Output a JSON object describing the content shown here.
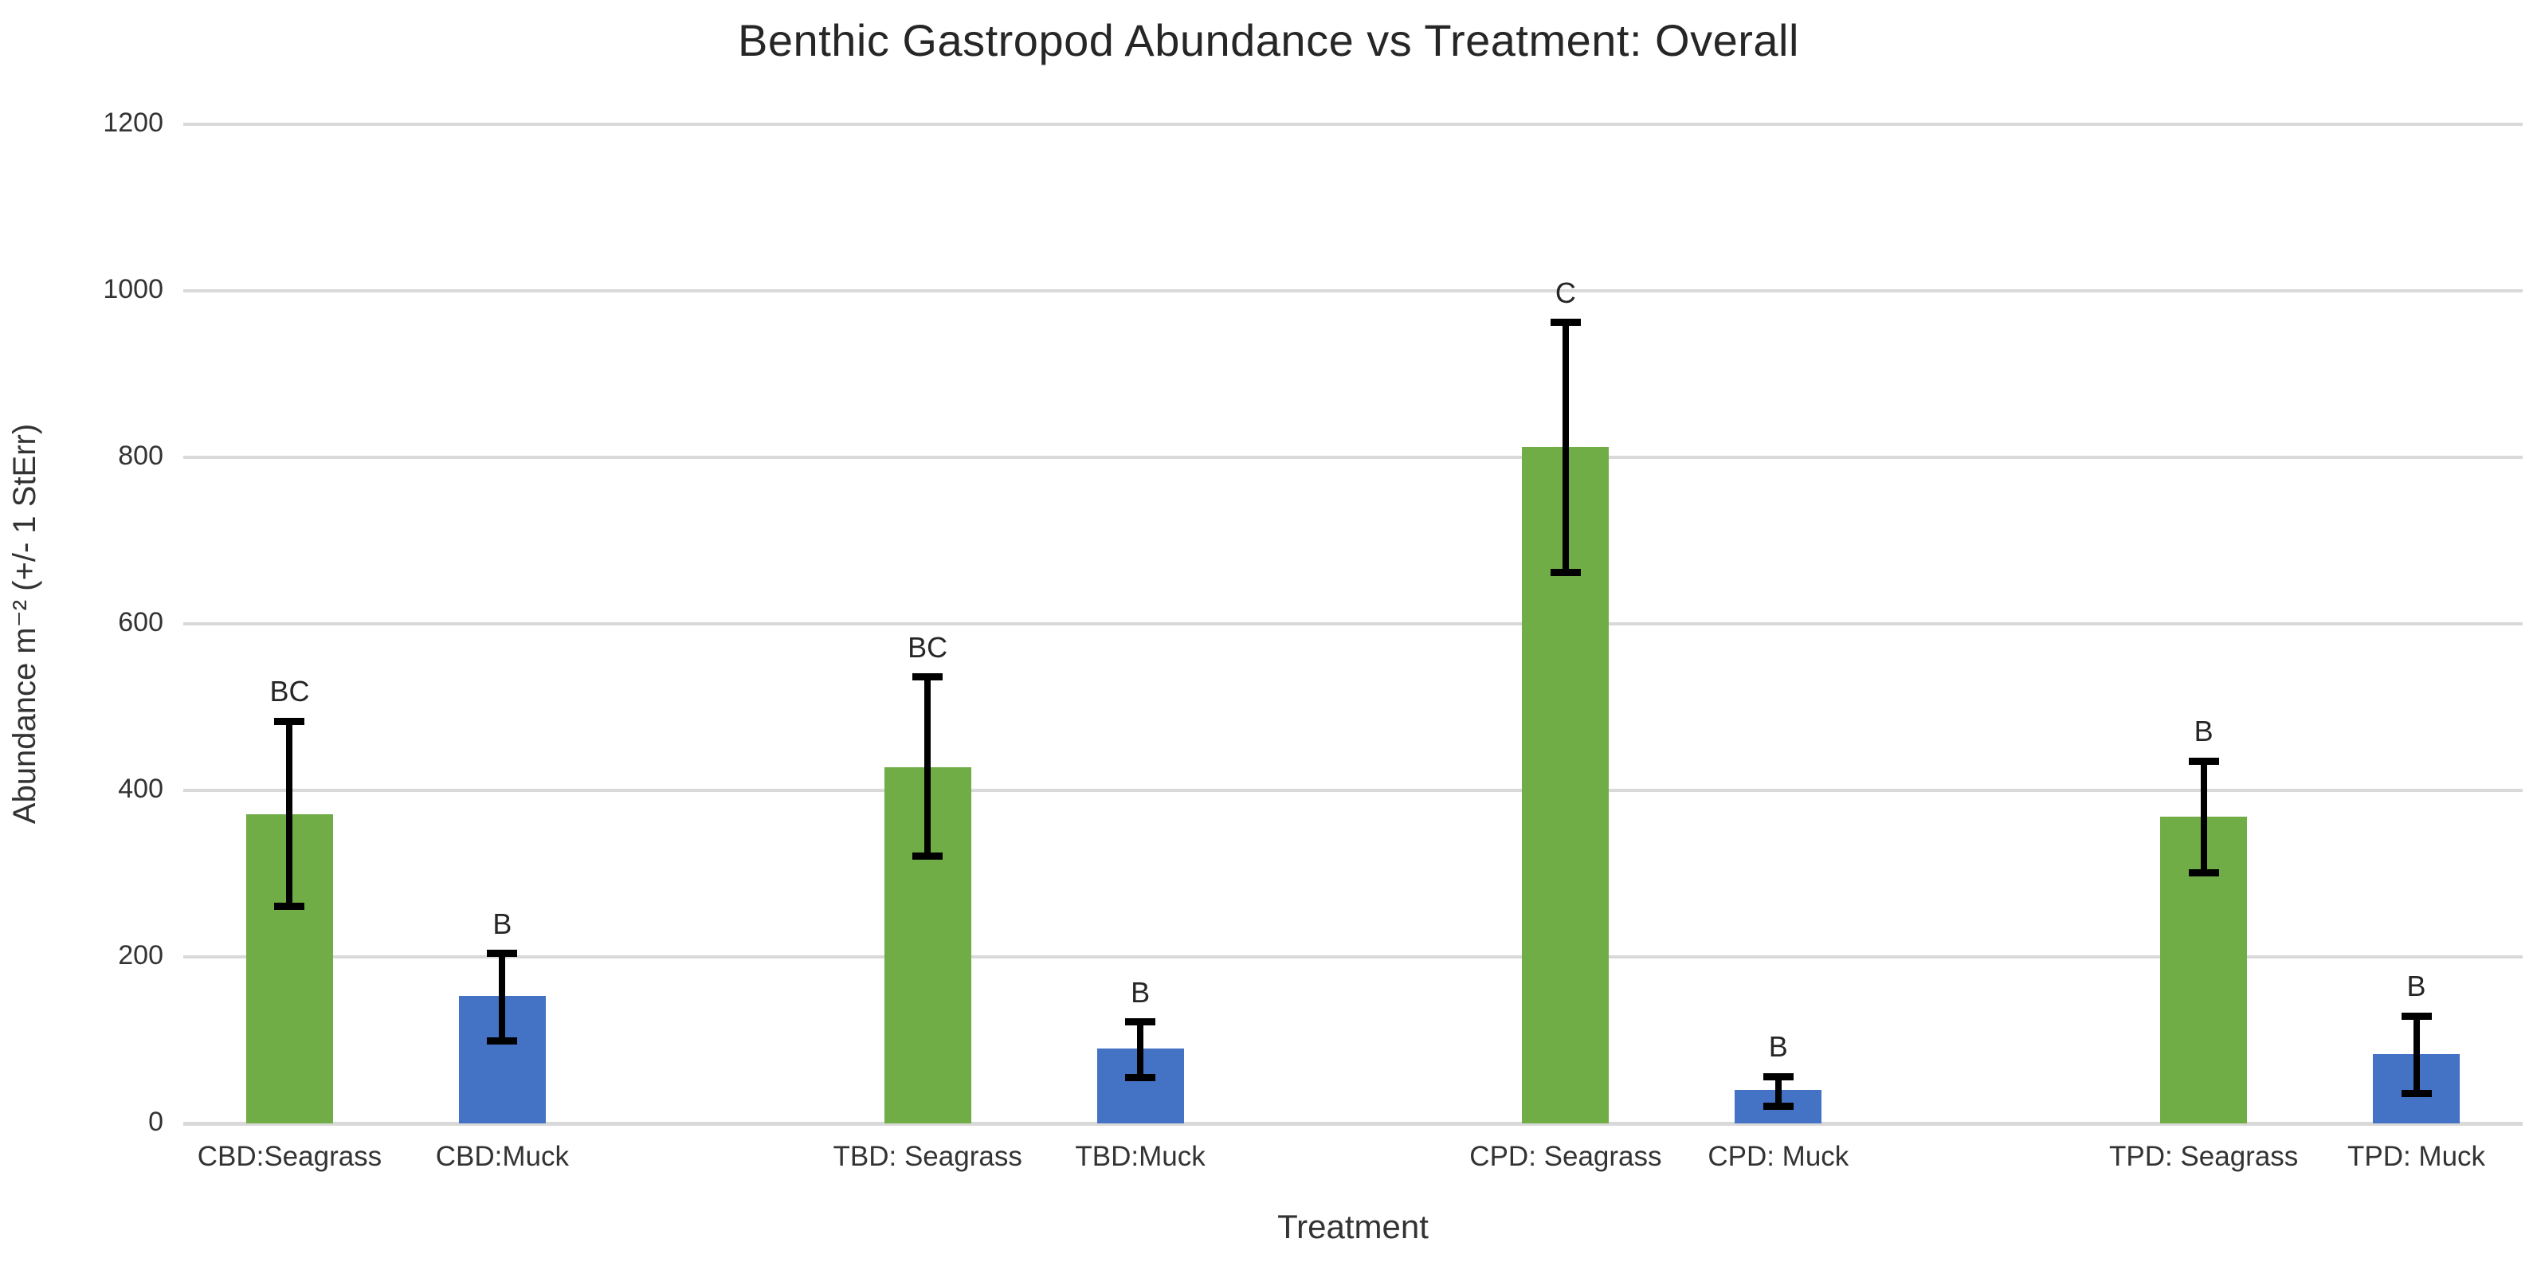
{
  "figure": {
    "background": "#ffffff"
  },
  "chart_data": {
    "type": "bar",
    "title": "Benthic Gastropod Abundance vs Treatment: Overall",
    "xlabel": "Treatment",
    "ylabel": "Abundance m⁻² (+/- 1 StErr)",
    "ylim": [
      0,
      1200
    ],
    "yticks": [
      0,
      200,
      400,
      600,
      800,
      1000,
      1200
    ],
    "grid": true,
    "legend": "none",
    "error_bars": "plus-minus 1 standard error, black with caps",
    "series_colors": {
      "Seagrass": "#70AD47",
      "Muck": "#4472C4"
    },
    "group_size": 2,
    "blank_slots_between_groups": 1,
    "bars": [
      {
        "category": "CBD:Seagrass",
        "series": "Seagrass",
        "value": 371,
        "err_low": 261,
        "err_high": 483,
        "letter": "BC"
      },
      {
        "category": "CBD:Muck",
        "series": "Muck",
        "value": 153,
        "err_low": 99,
        "err_high": 204,
        "letter": "B"
      },
      {
        "category": "TBD: Seagrass",
        "series": "Seagrass",
        "value": 428,
        "err_low": 321,
        "err_high": 536,
        "letter": "BC"
      },
      {
        "category": "TBD:Muck",
        "series": "Muck",
        "value": 90,
        "err_low": 55,
        "err_high": 122,
        "letter": "B"
      },
      {
        "category": "CPD: Seagrass",
        "series": "Seagrass",
        "value": 812,
        "err_low": 662,
        "err_high": 962,
        "letter": "C"
      },
      {
        "category": "CPD: Muck",
        "series": "Muck",
        "value": 40,
        "err_low": 21,
        "err_high": 56,
        "letter": "B"
      },
      {
        "category": "TPD: Seagrass",
        "series": "Seagrass",
        "value": 368,
        "err_low": 301,
        "err_high": 435,
        "letter": "B"
      },
      {
        "category": "TPD: Muck",
        "series": "Muck",
        "value": 83,
        "err_low": 36,
        "err_high": 129,
        "letter": "B"
      }
    ],
    "gridline_color": "#d9d9d9",
    "text_color": "#333333",
    "error_bar_color": "#000000"
  }
}
